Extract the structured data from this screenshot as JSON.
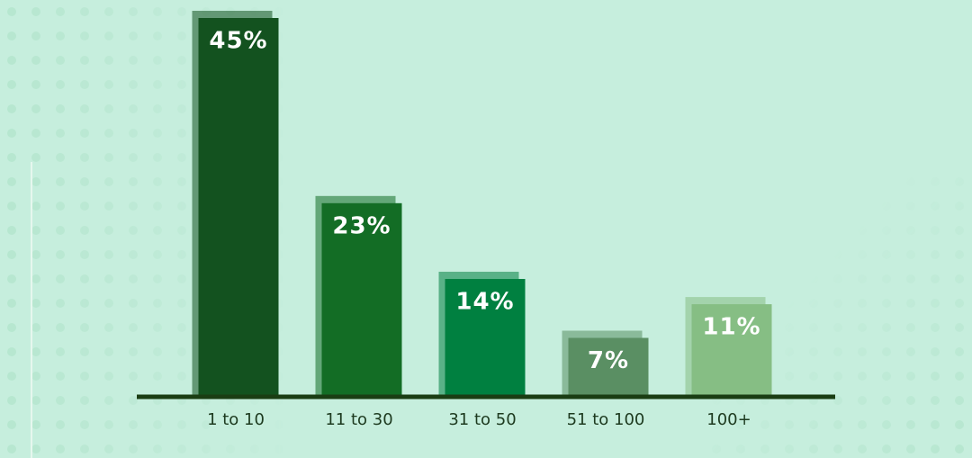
{
  "chart_data": {
    "type": "bar",
    "categories": [
      "1 to 10",
      "11 to 30",
      "31 to 50",
      "51 to 100",
      "100+"
    ],
    "values": [
      45,
      23,
      14,
      7,
      11
    ],
    "value_labels": [
      "45%",
      "23%",
      "14%",
      "7%",
      "11%"
    ],
    "colors": [
      "#13521f",
      "#136d25",
      "#008040",
      "#5a8f63",
      "#86be84"
    ]
  }
}
